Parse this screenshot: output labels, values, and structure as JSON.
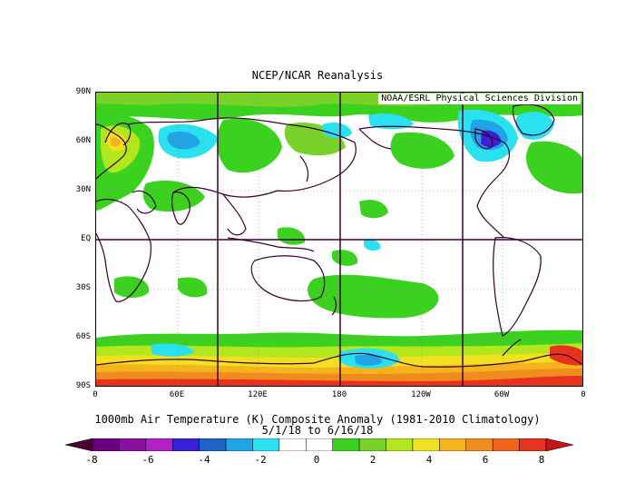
{
  "title": "NCEP/NCAR Reanalysis",
  "credit": "NOAA/ESRL Physical Sciences Division",
  "caption": {
    "line1": "1000mb Air Temperature (K) Composite Anomaly (1981-2010 Climatology)",
    "line2": "5/1/18  to 6/16/18"
  },
  "lat_labels": [
    "90N",
    "60N",
    "30N",
    "EQ",
    "30S",
    "60S",
    "90S"
  ],
  "lon_labels": [
    "0",
    "60E",
    "120E",
    "180",
    "120W",
    "60W",
    "0"
  ],
  "colorbar": {
    "labels": [
      "-8",
      "-6",
      "-4",
      "-2",
      "0",
      "2",
      "4",
      "6",
      "8"
    ],
    "colors": [
      "#6a0080",
      "#8c10a0",
      "#b41fc8",
      "#3a1fd8",
      "#1e64c8",
      "#1fa5e6",
      "#2ae1f0",
      "#ffffff",
      "#ffffff",
      "#3ad21e",
      "#78d228",
      "#b4e61e",
      "#f0e11e",
      "#f5b41e",
      "#f08c1e",
      "#f0641e",
      "#e6321e"
    ],
    "low_arrow": "#4a0030",
    "high_arrow": "#c81414"
  },
  "anomaly_colors": {
    "green": "#3ad21e",
    "lightgreen": "#78d228",
    "yellowgreen": "#b4e61e",
    "yellow": "#f0e11e",
    "orange": "#f5b41e",
    "darkorange": "#f08c1e",
    "red": "#e6321e",
    "cyan": "#2ae1f0",
    "lightblue": "#1fa5e6",
    "blue": "#1e64c8",
    "indigo": "#3a1fd8"
  }
}
